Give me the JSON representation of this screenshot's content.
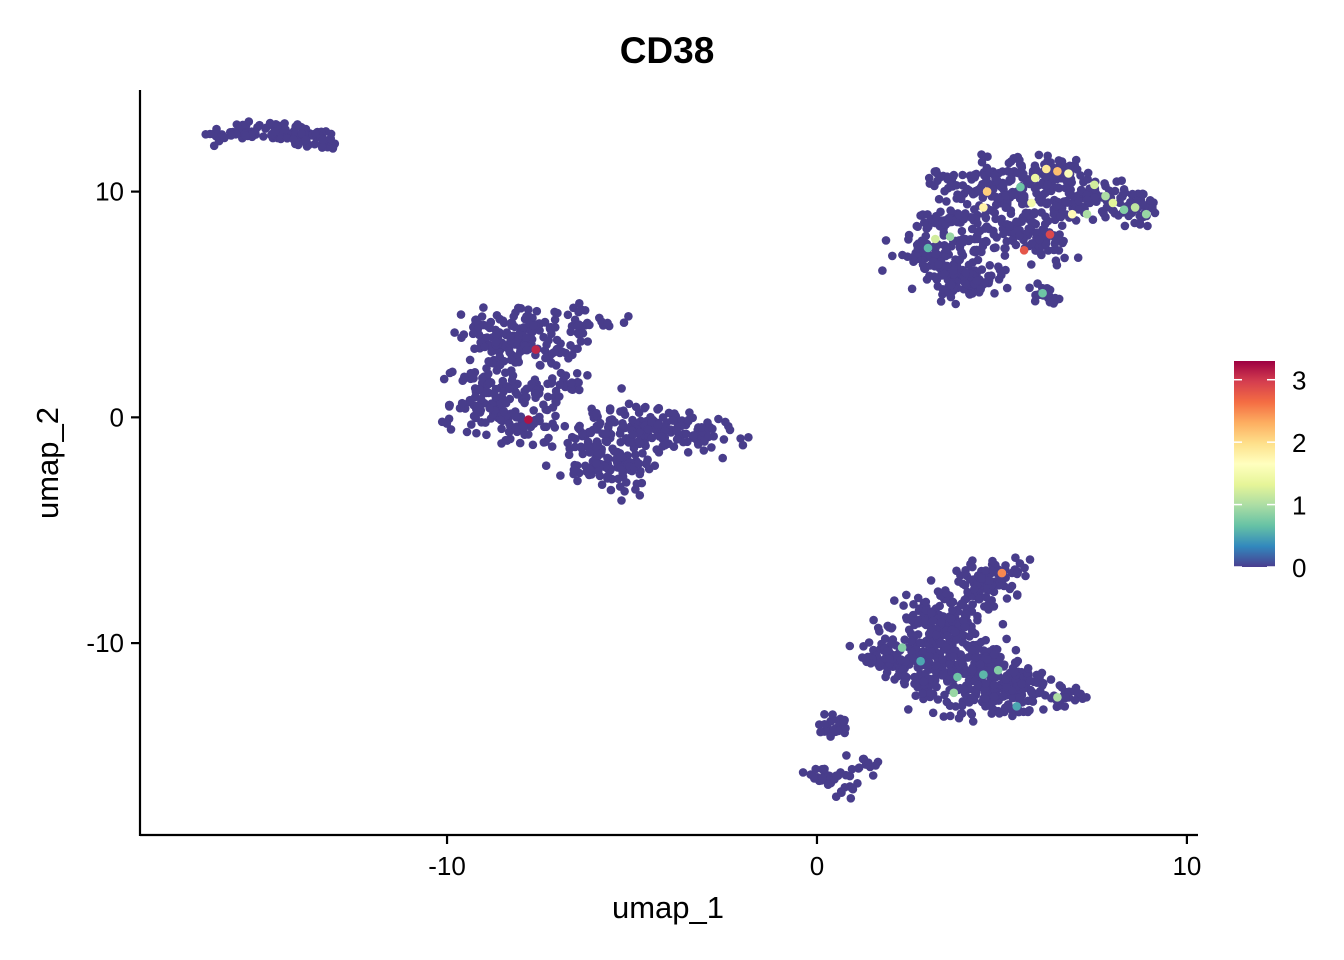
{
  "chart_data": {
    "type": "scatter",
    "title": "CD38",
    "xlabel": "umap_1",
    "ylabel": "umap_2",
    "xlim": [
      -18.3,
      10.3
    ],
    "ylim": [
      -18.5,
      14.5
    ],
    "x_ticks": [
      -10,
      0,
      10
    ],
    "x_tick_labels": [
      "-10",
      "0",
      "10"
    ],
    "y_ticks": [
      -10,
      0,
      10
    ],
    "y_tick_labels": [
      "-10",
      "0",
      "10"
    ],
    "grid": false,
    "legend": {
      "position": "right",
      "type": "colorbar",
      "range": [
        0,
        3.3
      ],
      "ticks": [
        0,
        1,
        2,
        3
      ],
      "tick_labels": [
        "0",
        "1",
        "2",
        "3"
      ],
      "palette": [
        "#4a3d8f",
        "#3288bd",
        "#66c2a5",
        "#abdda4",
        "#e6f598",
        "#ffffbf",
        "#fee08b",
        "#fdae61",
        "#f46d43",
        "#d53e4f",
        "#9e0142"
      ]
    },
    "point_color_base": "#483d8b",
    "clusters": [
      {
        "cells": 130,
        "shape": "arc",
        "path": [
          [
            -16.5,
            12.5
          ],
          [
            -15.5,
            12.7
          ],
          [
            -14.5,
            12.7
          ],
          [
            -13.8,
            12.4
          ],
          [
            -13.1,
            12.1
          ]
        ],
        "spread": 0.22
      },
      {
        "cells": 700,
        "shape": "region",
        "path": [
          [
            -9.1,
            1.5
          ],
          [
            -8.9,
            3.8
          ],
          [
            -7.8,
            4.3
          ],
          [
            -6.3,
            4.3
          ],
          [
            -8.3,
            2.5
          ],
          [
            -8.0,
            1.0
          ],
          [
            -6.3,
            -1.0
          ],
          [
            -5.8,
            -2.3
          ],
          [
            -5.2,
            -2.4
          ],
          [
            -5.5,
            -1.4
          ],
          [
            -4.6,
            -0.4
          ],
          [
            -3.8,
            -0.5
          ],
          [
            -3.0,
            -0.8
          ],
          [
            -4.6,
            -0.7
          ],
          [
            -5.8,
            -0.1
          ],
          [
            -6.9,
            1.3
          ],
          [
            -7.3,
            3.2
          ],
          [
            -8.6,
            3.5
          ],
          [
            -9.0,
            0.3
          ],
          [
            -8.0,
            -0.4
          ]
        ],
        "spread": 0.45
      },
      {
        "cells": 700,
        "shape": "region",
        "path": [
          [
            2.9,
            7.2
          ],
          [
            3.3,
            8.6
          ],
          [
            3.6,
            10.4
          ],
          [
            4.8,
            10.5
          ],
          [
            5.8,
            10.8
          ],
          [
            6.4,
            10.5
          ],
          [
            7.3,
            9.8
          ],
          [
            8.4,
            9.6
          ],
          [
            8.8,
            9.1
          ],
          [
            6.7,
            9.4
          ],
          [
            5.1,
            9.8
          ],
          [
            4.1,
            9.0
          ],
          [
            3.8,
            7.5
          ],
          [
            4.9,
            8.1
          ],
          [
            5.9,
            8.6
          ],
          [
            6.1,
            7.6
          ],
          [
            4.3,
            6.2
          ],
          [
            3.4,
            6.5
          ],
          [
            3.8,
            6.0
          ]
        ],
        "spread": 0.4
      },
      {
        "cells": 25,
        "shape": "arc",
        "path": [
          [
            5.9,
            5.6
          ],
          [
            6.4,
            5.3
          ]
        ],
        "spread": 0.18
      },
      {
        "cells": 700,
        "shape": "region",
        "path": [
          [
            1.8,
            -10.6
          ],
          [
            2.5,
            -9.6
          ],
          [
            3.1,
            -10.3
          ],
          [
            3.5,
            -11.3
          ],
          [
            3.0,
            -12.0
          ],
          [
            4.2,
            -12.6
          ],
          [
            5.2,
            -12.5
          ],
          [
            6.3,
            -12.3
          ],
          [
            5.4,
            -11.7
          ],
          [
            4.8,
            -10.9
          ],
          [
            3.9,
            -10.1
          ],
          [
            3.6,
            -9.3
          ],
          [
            3.9,
            -8.4
          ],
          [
            4.6,
            -7.3
          ],
          [
            5.0,
            -6.9
          ],
          [
            4.3,
            -7.7
          ],
          [
            3.0,
            -8.7
          ],
          [
            4.4,
            -11.6
          ],
          [
            2.5,
            -11.0
          ]
        ],
        "spread": 0.4
      },
      {
        "cells": 70,
        "shape": "region",
        "path": [
          [
            0.0,
            -15.7
          ],
          [
            0.4,
            -16.1
          ],
          [
            0.7,
            -16.3
          ],
          [
            0.9,
            -15.8
          ],
          [
            0.3,
            -13.8
          ],
          [
            0.5,
            -13.4
          ],
          [
            1.2,
            -15.3
          ]
        ],
        "spread": 0.25
      }
    ],
    "highlights": [
      {
        "x": -7.6,
        "y": 3.0,
        "value": 3.1
      },
      {
        "x": -7.8,
        "y": -0.1,
        "value": 3.2
      },
      {
        "x": 5.6,
        "y": 7.4,
        "value": 2.8
      },
      {
        "x": 6.3,
        "y": 8.1,
        "value": 2.9
      },
      {
        "x": 6.2,
        "y": 11.0,
        "value": 1.9
      },
      {
        "x": 6.5,
        "y": 10.9,
        "value": 2.2
      },
      {
        "x": 6.8,
        "y": 10.8,
        "value": 1.6
      },
      {
        "x": 7.5,
        "y": 10.3,
        "value": 1.2
      },
      {
        "x": 7.8,
        "y": 9.8,
        "value": 1.0
      },
      {
        "x": 8.0,
        "y": 9.5,
        "value": 1.3
      },
      {
        "x": 8.3,
        "y": 9.2,
        "value": 0.8
      },
      {
        "x": 8.6,
        "y": 9.3,
        "value": 1.1
      },
      {
        "x": 8.9,
        "y": 9.0,
        "value": 0.9
      },
      {
        "x": 5.9,
        "y": 10.6,
        "value": 1.4
      },
      {
        "x": 5.5,
        "y": 10.2,
        "value": 0.7
      },
      {
        "x": 4.6,
        "y": 10.0,
        "value": 2.1
      },
      {
        "x": 3.6,
        "y": 8.0,
        "value": 0.9
      },
      {
        "x": 3.2,
        "y": 7.9,
        "value": 1.2
      },
      {
        "x": 3.0,
        "y": 7.5,
        "value": 0.6
      },
      {
        "x": 6.9,
        "y": 9.0,
        "value": 1.7
      },
      {
        "x": 7.3,
        "y": 9.0,
        "value": 1.0
      },
      {
        "x": 5.8,
        "y": 9.5,
        "value": 1.5
      },
      {
        "x": 4.5,
        "y": 9.3,
        "value": 1.8
      },
      {
        "x": 6.1,
        "y": 5.5,
        "value": 0.7
      },
      {
        "x": 2.3,
        "y": -10.2,
        "value": 0.8
      },
      {
        "x": 3.8,
        "y": -11.5,
        "value": 0.7
      },
      {
        "x": 4.5,
        "y": -11.4,
        "value": 0.6
      },
      {
        "x": 3.7,
        "y": -12.2,
        "value": 0.9
      },
      {
        "x": 4.9,
        "y": -11.2,
        "value": 0.8
      },
      {
        "x": 5.4,
        "y": -12.8,
        "value": 0.5
      },
      {
        "x": 6.5,
        "y": -12.4,
        "value": 1.0
      },
      {
        "x": 5.0,
        "y": -6.9,
        "value": 2.5
      },
      {
        "x": 2.8,
        "y": -10.8,
        "value": 0.5
      }
    ]
  }
}
